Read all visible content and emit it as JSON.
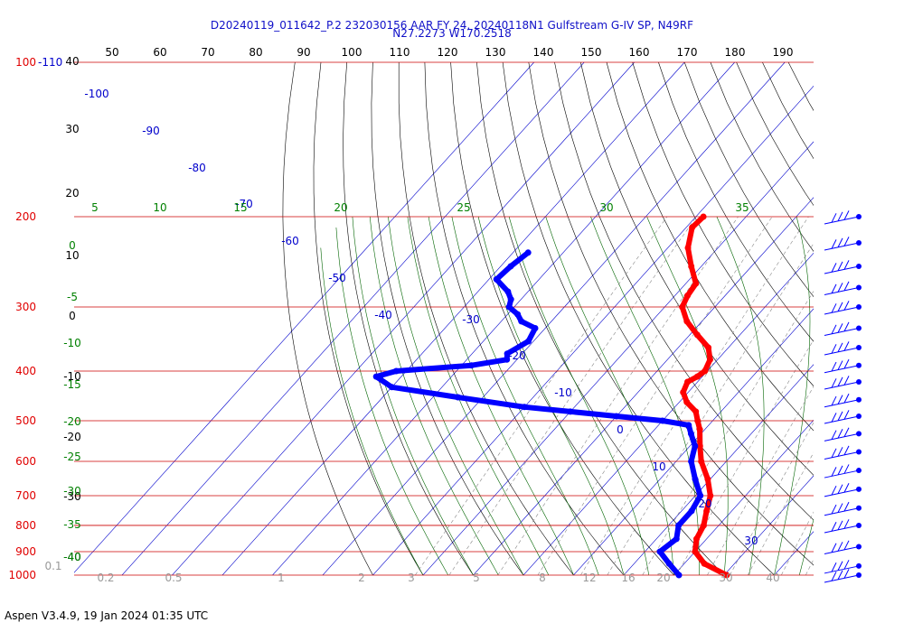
{
  "header": {
    "title_line1": "D20240119_011642_P.2 232030156 AAR FY 24, 20240118N1 Gulfstream G-IV SP, N49RF",
    "title_line2": "N27.2273 W170.2518"
  },
  "footer": {
    "version_text": "Aspen V3.4.9, 19 Jan 2024  01:35 UTC"
  },
  "colors": {
    "temperature": "#ff0000",
    "dewpoint": "#0000ff",
    "isobar": "#cc0000",
    "isotherm": "#0000cc",
    "dry_adiabat": "#000000",
    "moist_adiabat": "#006400",
    "mixing_ratio": "#888888",
    "wind_barb": "#0000ff"
  },
  "chart_data": {
    "type": "skew-t log-p",
    "pressure_levels": [
      {
        "p": 100,
        "label": "100"
      },
      {
        "p": 200,
        "label": "200"
      },
      {
        "p": 300,
        "label": "300"
      },
      {
        "p": 400,
        "label": "400"
      },
      {
        "p": 500,
        "label": "500"
      },
      {
        "p": 600,
        "label": "600"
      },
      {
        "p": 700,
        "label": "700"
      },
      {
        "p": 800,
        "label": "800"
      },
      {
        "p": 900,
        "label": "900"
      },
      {
        "p": 1000,
        "label": "1000"
      }
    ],
    "top_pressure_extra_label": "-110",
    "top_axis_ticks": [
      "50",
      "60",
      "70",
      "80",
      "90",
      "100",
      "110",
      "120",
      "130",
      "140",
      "150",
      "160",
      "170",
      "180",
      "190"
    ],
    "left_altitude_labels": [
      "40",
      "30",
      "20",
      "10",
      "0",
      "-10",
      "-20",
      "-30",
      "-40"
    ],
    "left_green_labels": [
      "0",
      "-5",
      "-10",
      "-15",
      "-20",
      "-25",
      "-30",
      "-35",
      "-40"
    ],
    "isotherm_labels": [
      "-100",
      "-90",
      "-80",
      "-70",
      "-60",
      "-50",
      "-40",
      "-30",
      "-20",
      "-10",
      "0",
      "10",
      "20",
      "30"
    ],
    "moist_labels": [
      "5",
      "10",
      "15",
      "20",
      "25",
      "30",
      "35"
    ],
    "mixing_ratio_labels": [
      "0.1",
      "0.2",
      "0.5",
      "1",
      "2",
      "3",
      "5",
      "8",
      "12",
      "16",
      "20",
      "30",
      "40"
    ],
    "temperature_profile": [
      {
        "p": 200,
        "t": -48.5
      },
      {
        "p": 210,
        "t": -48.8
      },
      {
        "p": 230,
        "t": -46.0
      },
      {
        "p": 250,
        "t": -42.0
      },
      {
        "p": 270,
        "t": -38.0
      },
      {
        "p": 285,
        "t": -37.5
      },
      {
        "p": 300,
        "t": -36.5
      },
      {
        "p": 320,
        "t": -33.0
      },
      {
        "p": 340,
        "t": -28.5
      },
      {
        "p": 360,
        "t": -24.0
      },
      {
        "p": 380,
        "t": -21.5
      },
      {
        "p": 400,
        "t": -20.5
      },
      {
        "p": 410,
        "t": -21.0
      },
      {
        "p": 420,
        "t": -22.0
      },
      {
        "p": 440,
        "t": -21.0
      },
      {
        "p": 460,
        "t": -18.5
      },
      {
        "p": 480,
        "t": -15.0
      },
      {
        "p": 500,
        "t": -13.0
      },
      {
        "p": 520,
        "t": -11.0
      },
      {
        "p": 560,
        "t": -8.0
      },
      {
        "p": 600,
        "t": -5.0
      },
      {
        "p": 650,
        "t": -0.5
      },
      {
        "p": 700,
        "t": 3.0
      },
      {
        "p": 750,
        "t": 5.0
      },
      {
        "p": 800,
        "t": 7.0
      },
      {
        "p": 850,
        "t": 8.0
      },
      {
        "p": 900,
        "t": 10.0
      },
      {
        "p": 950,
        "t": 14.0
      },
      {
        "p": 1000,
        "t": 20.5
      }
    ],
    "dewpoint_profile": [
      {
        "p": 235,
        "t": -77.0
      },
      {
        "p": 250,
        "t": -78.0
      },
      {
        "p": 265,
        "t": -78.5
      },
      {
        "p": 280,
        "t": -74.0
      },
      {
        "p": 290,
        "t": -72.0
      },
      {
        "p": 300,
        "t": -71.0
      },
      {
        "p": 310,
        "t": -68.0
      },
      {
        "p": 320,
        "t": -66.0
      },
      {
        "p": 330,
        "t": -62.0
      },
      {
        "p": 350,
        "t": -61.0
      },
      {
        "p": 370,
        "t": -63.0
      },
      {
        "p": 380,
        "t": -62.0
      },
      {
        "p": 390,
        "t": -68.0
      },
      {
        "p": 400,
        "t": -82.0
      },
      {
        "p": 410,
        "t": -85.0
      },
      {
        "p": 430,
        "t": -80.0
      },
      {
        "p": 450,
        "t": -65.0
      },
      {
        "p": 470,
        "t": -50.0
      },
      {
        "p": 480,
        "t": -40.0
      },
      {
        "p": 490,
        "t": -30.0
      },
      {
        "p": 500,
        "t": -20.0
      },
      {
        "p": 510,
        "t": -14.0
      },
      {
        "p": 530,
        "t": -12.0
      },
      {
        "p": 560,
        "t": -9.0
      },
      {
        "p": 600,
        "t": -7.0
      },
      {
        "p": 650,
        "t": -3.0
      },
      {
        "p": 700,
        "t": 1.0
      },
      {
        "p": 750,
        "t": 2.0
      },
      {
        "p": 800,
        "t": 2.0
      },
      {
        "p": 850,
        "t": 4.0
      },
      {
        "p": 900,
        "t": 3.0
      },
      {
        "p": 950,
        "t": 7.0
      },
      {
        "p": 1000,
        "t": 11.0
      }
    ],
    "wind_barb_levels": [
      200,
      225,
      250,
      275,
      300,
      330,
      360,
      390,
      420,
      455,
      490,
      530,
      575,
      625,
      680,
      740,
      800,
      880,
      960,
      1000
    ]
  }
}
